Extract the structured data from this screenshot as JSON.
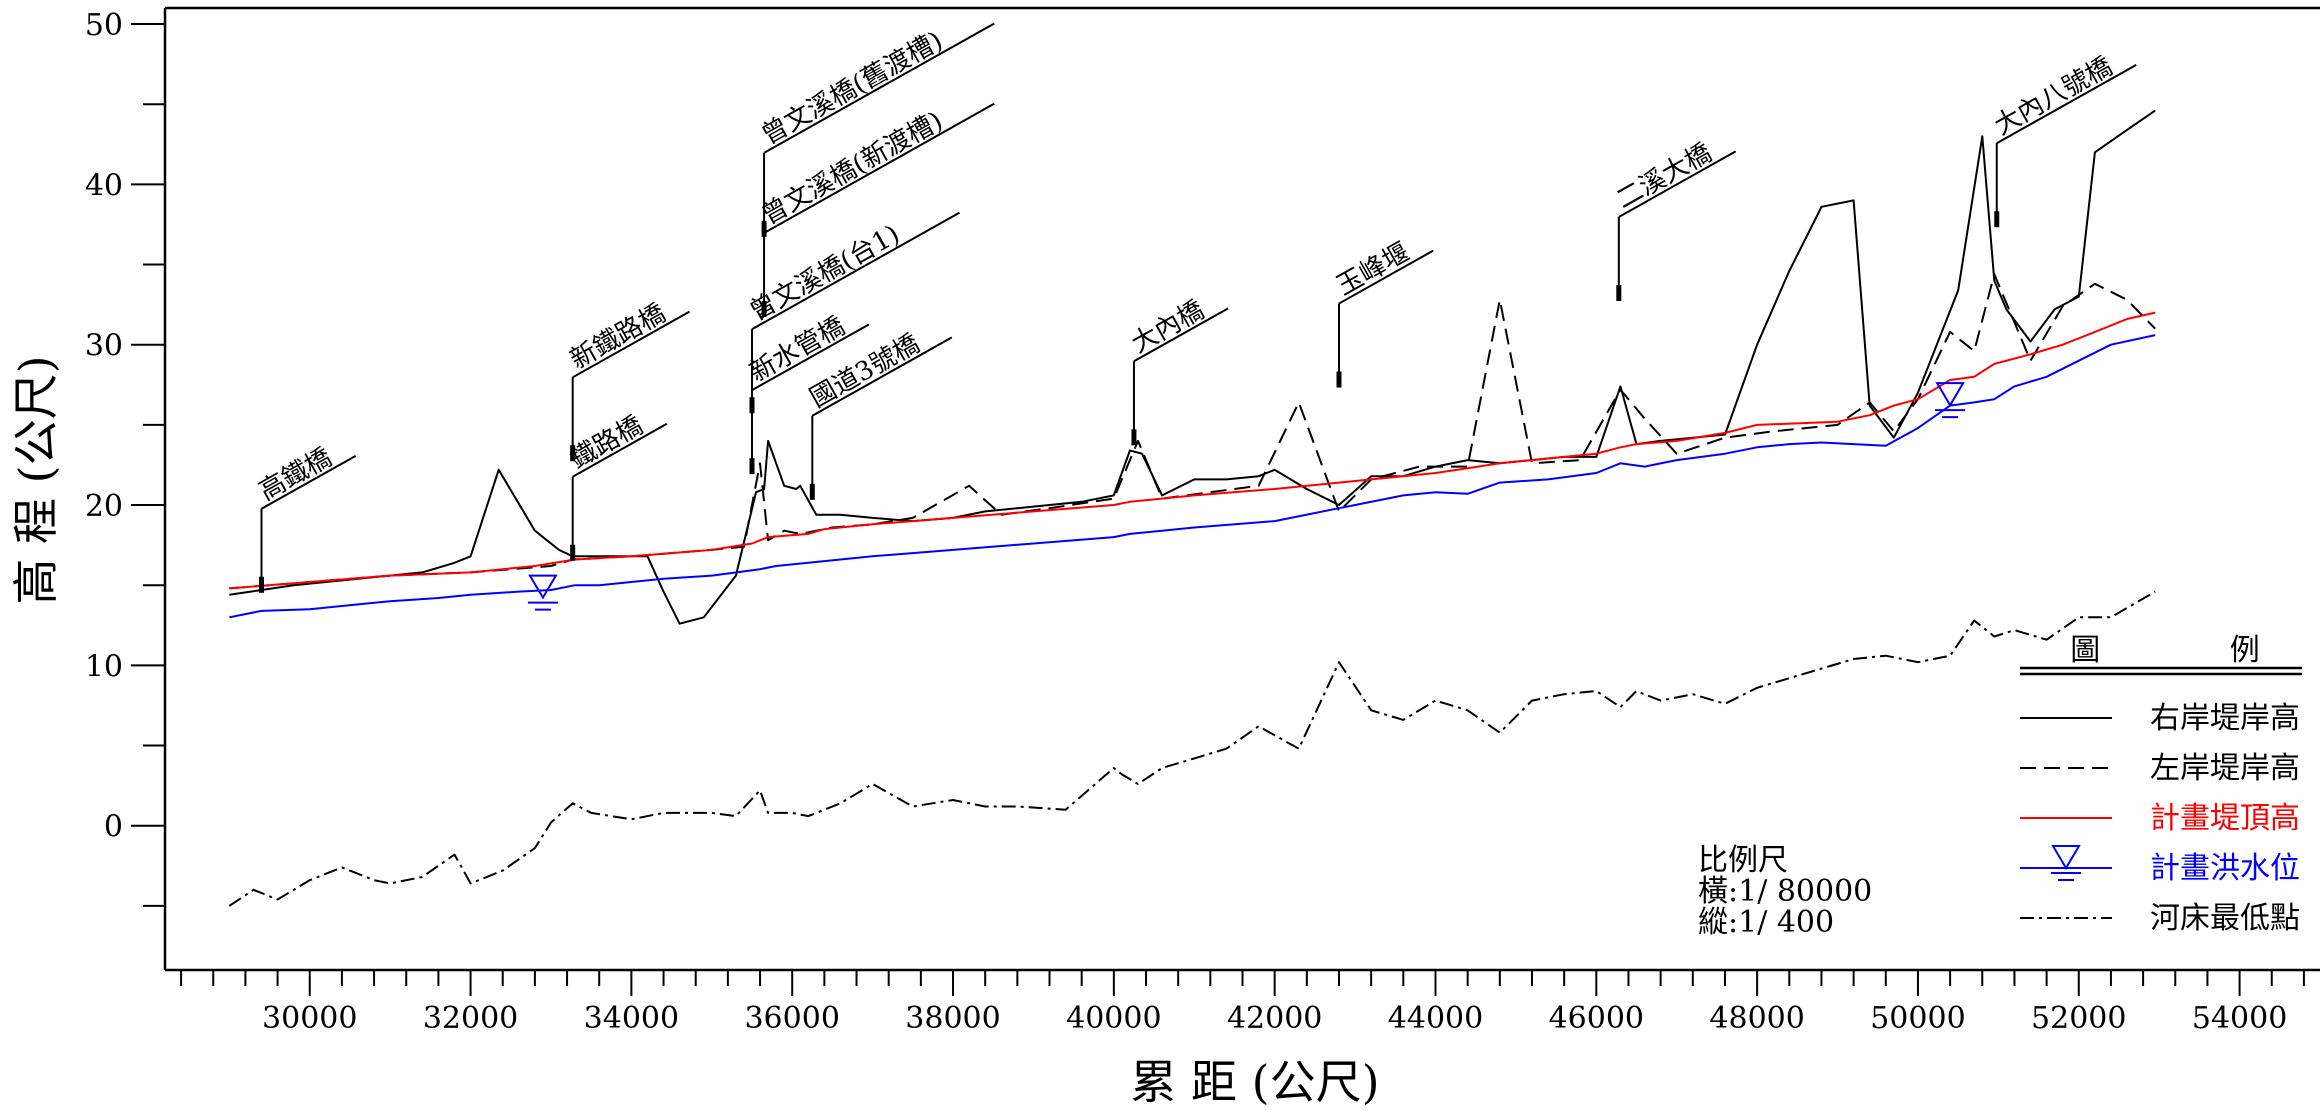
{
  "chart_data": {
    "type": "line",
    "xlabel": "累 距 (公尺)",
    "ylabel": "高 程 (公尺)",
    "xlim": [
      28200,
      55000
    ],
    "ylim": [
      -9,
      51
    ],
    "x_ticks": [
      30000,
      32000,
      34000,
      36000,
      38000,
      40000,
      42000,
      44000,
      46000,
      48000,
      50000,
      52000,
      54000
    ],
    "y_ticks": [
      0,
      10,
      20,
      30,
      40,
      50
    ],
    "grid": false,
    "legend_position": "bottom-right",
    "legend_title": "圖 例",
    "series": [
      {
        "name": "右岸堤岸高",
        "color": "#000000",
        "dash": "solid",
        "x": [
          29000,
          29800,
          30600,
          31000,
          31400,
          31800,
          32000,
          32350,
          32800,
          33100,
          33270,
          33800,
          34200,
          34400,
          34600,
          34900,
          35300,
          35550,
          35650,
          35700,
          35900,
          36050,
          36100,
          36300,
          36600,
          37000,
          37500,
          38000,
          38400,
          38800,
          39200,
          39600,
          40000,
          40200,
          40350,
          40600,
          41000,
          41400,
          41800,
          42000,
          42400,
          42800,
          43200,
          43600,
          44000,
          44400,
          44800,
          45200,
          45600,
          46000,
          46300,
          46500,
          46800,
          47200,
          47600,
          48000,
          48400,
          48800,
          49200,
          49400,
          49700,
          50000,
          50500,
          50800,
          50950,
          51100,
          51400,
          51700,
          52000,
          52200,
          52600,
          52950
        ],
        "y": [
          14.4,
          15,
          15.4,
          15.6,
          15.8,
          16.4,
          16.8,
          22.2,
          18.4,
          17.2,
          16.8,
          16.8,
          16.8,
          14.6,
          12.6,
          13,
          15.6,
          20.8,
          21,
          24,
          21.2,
          21,
          21.2,
          19.4,
          19.4,
          19.2,
          19,
          19.2,
          19.6,
          19.8,
          20,
          20.2,
          20.6,
          23.4,
          23.2,
          20.6,
          21.6,
          21.6,
          21.8,
          22.2,
          21,
          20,
          21.8,
          21.8,
          22.4,
          22.8,
          22.6,
          22.8,
          23,
          23,
          27.4,
          23.8,
          24,
          24.2,
          24.4,
          30,
          34.6,
          38.6,
          39,
          26.2,
          24.2,
          27,
          33.4,
          43,
          34,
          32.2,
          30.2,
          32.2,
          33,
          42,
          43.4,
          44.6
        ]
      },
      {
        "name": "左岸堤岸高",
        "color": "#000000",
        "dash": "dashed",
        "x": [
          29000,
          30000,
          31000,
          32000,
          33000,
          33270,
          34000,
          35000,
          35400,
          35600,
          35700,
          35900,
          36100,
          36500,
          37000,
          37500,
          38200,
          38600,
          39200,
          40000,
          40300,
          40600,
          41200,
          41800,
          42300,
          42800,
          43200,
          43800,
          44400,
          44800,
          45200,
          45800,
          46300,
          46600,
          47000,
          47600,
          48200,
          49000,
          49400,
          49700,
          50000,
          50400,
          50700,
          50950,
          51400,
          51800,
          52200,
          52600,
          52950
        ],
        "y": [
          14.8,
          15.2,
          15.6,
          15.8,
          16.2,
          16.6,
          16.8,
          17.2,
          17.4,
          22.6,
          17.8,
          18.4,
          18.2,
          18.6,
          18.8,
          19.2,
          21.2,
          19.4,
          19.8,
          20.4,
          24,
          20.4,
          20.8,
          21.2,
          26.4,
          19.6,
          21.6,
          22.4,
          22.4,
          32.8,
          22.6,
          22.8,
          27.2,
          25.4,
          23.2,
          24.2,
          24.6,
          25,
          26.4,
          24.6,
          26.6,
          30.8,
          29.6,
          34.4,
          29,
          32.4,
          33.8,
          32.8,
          31
        ]
      },
      {
        "name": "計畫堤頂高",
        "color": "#ff0000",
        "dash": "solid",
        "x": [
          29000,
          30000,
          31000,
          32000,
          32800,
          33300,
          34000,
          35000,
          35500,
          35700,
          36200,
          36400,
          37000,
          38000,
          39000,
          40000,
          40200,
          41000,
          42000,
          43000,
          44000,
          44400,
          44800,
          45600,
          46000,
          46300,
          46500,
          47000,
          47600,
          48000,
          49000,
          49400,
          49700,
          50000,
          50400,
          50700,
          50950,
          51400,
          51800,
          52200,
          52600,
          52950
        ],
        "y": [
          14.8,
          15.2,
          15.6,
          15.8,
          16.2,
          16.6,
          16.8,
          17.2,
          17.6,
          18,
          18.2,
          18.5,
          18.8,
          19.2,
          19.6,
          20,
          20.2,
          20.6,
          21,
          21.5,
          22,
          22.3,
          22.6,
          23,
          23.2,
          23.6,
          23.8,
          24,
          24.5,
          25,
          25.2,
          25.6,
          26.2,
          26.6,
          27.8,
          28,
          28.8,
          29.4,
          30,
          30.8,
          31.6,
          32
        ]
      },
      {
        "name": "計畫洪水位",
        "color": "#0000ff",
        "dash": "solid",
        "symbol": "water-level-marker",
        "x": [
          29000,
          29400,
          30000,
          30600,
          31000,
          31600,
          32000,
          32600,
          33000,
          33300,
          33600,
          34000,
          34400,
          35000,
          35600,
          35800,
          36200,
          37000,
          38000,
          39000,
          40000,
          40200,
          41000,
          42000,
          42800,
          43600,
          44000,
          44400,
          44800,
          45400,
          46000,
          46300,
          46600,
          47000,
          47600,
          48000,
          48400,
          48800,
          49200,
          49600,
          50000,
          50400,
          50700,
          50950,
          51200,
          51600,
          52000,
          52400,
          52950
        ],
        "y": [
          13,
          13.4,
          13.5,
          13.8,
          14,
          14.2,
          14.4,
          14.6,
          14.7,
          15,
          15,
          15.2,
          15.4,
          15.6,
          16,
          16.2,
          16.4,
          16.8,
          17.2,
          17.6,
          18,
          18.2,
          18.6,
          19,
          19.8,
          20.6,
          20.8,
          20.7,
          21.4,
          21.6,
          22,
          22.6,
          22.4,
          22.8,
          23.2,
          23.6,
          23.8,
          23.9,
          23.8,
          23.7,
          24.8,
          26.2,
          26.4,
          26.6,
          27.4,
          28,
          29,
          30,
          30.6
        ]
      },
      {
        "name": "河床最低點",
        "color": "#000000",
        "dash": "dash-dot",
        "x": [
          29000,
          29300,
          29600,
          30000,
          30400,
          30800,
          31000,
          31400,
          31800,
          32000,
          32400,
          32800,
          33000,
          33270,
          33500,
          34000,
          34400,
          35000,
          35300,
          35600,
          35700,
          36000,
          36200,
          36600,
          37000,
          37500,
          38000,
          38400,
          38800,
          39400,
          40000,
          40100,
          40300,
          40600,
          41000,
          41400,
          41800,
          42300,
          42800,
          43200,
          43600,
          44000,
          44400,
          44800,
          45200,
          45600,
          46000,
          46300,
          46500,
          46800,
          47200,
          47600,
          48000,
          48400,
          48800,
          49200,
          49600,
          50000,
          50400,
          50700,
          50950,
          51200,
          51600,
          52000,
          52400,
          52950
        ],
        "y": [
          -5,
          -4,
          -4.6,
          -3.4,
          -2.6,
          -3.4,
          -3.6,
          -3.2,
          -1.8,
          -3.6,
          -2.8,
          -1.4,
          0.2,
          1.4,
          0.8,
          0.4,
          0.8,
          0.8,
          0.6,
          2.2,
          0.8,
          0.8,
          0.6,
          1.4,
          2.6,
          1.2,
          1.6,
          1.2,
          1.2,
          1,
          3.6,
          3.2,
          2.6,
          3.6,
          4.2,
          4.8,
          6.2,
          4.8,
          10.2,
          7.2,
          6.6,
          7.8,
          7.2,
          5.8,
          7.8,
          8.2,
          8.4,
          7.4,
          8.4,
          7.8,
          8.2,
          7.6,
          8.6,
          9.2,
          9.8,
          10.4,
          10.6,
          10.2,
          10.6,
          12.8,
          11.8,
          12.2,
          11.6,
          13,
          13,
          14.6
        ]
      }
    ],
    "annotations": [
      {
        "label": "高鐵橋",
        "x": 29400,
        "y": 15.4
      },
      {
        "label": "鐵路橋",
        "x": 33270,
        "y": 17.4
      },
      {
        "label": "新鐵路橋",
        "x": 33270,
        "y": 23.6
      },
      {
        "label": "新水管橋",
        "x": 35500,
        "y": 22.8
      },
      {
        "label": "曾文溪橋(台1)",
        "x": 35500,
        "y": 26.6
      },
      {
        "label": "曾文溪橋(新渡槽)",
        "x": 35650,
        "y": 32.6
      },
      {
        "label": "曾文溪橋(舊渡槽)",
        "x": 35650,
        "y": 37.6
      },
      {
        "label": "國道3號橋",
        "x": 36250,
        "y": 21.2
      },
      {
        "label": "大內橋",
        "x": 40250,
        "y": 24.6
      },
      {
        "label": "玉峰堰",
        "x": 42800,
        "y": 28.2
      },
      {
        "label": "二溪大橋",
        "x": 46280,
        "y": 33.6
      },
      {
        "label": "大內八號橋",
        "x": 50980,
        "y": 38.2
      }
    ],
    "water_level_markers": [
      {
        "x": 32900,
        "y": 15.6
      },
      {
        "x": 50400,
        "y": 27.6
      }
    ],
    "scale_note": {
      "title": "比例尺",
      "horizontal": "橫:1/ 80000",
      "vertical": "縱:1/ 400"
    }
  }
}
